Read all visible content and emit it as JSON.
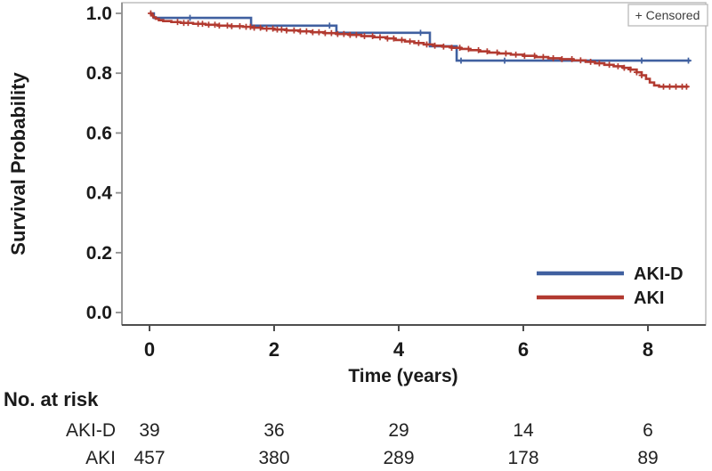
{
  "chart_data": {
    "type": "line",
    "subtype": "kaplan-meier-step",
    "title": "",
    "xlabel": "Time (years)",
    "ylabel": "Survival Probability",
    "xlim": [
      -0.45,
      8.95
    ],
    "ylim": [
      -0.04,
      1.035
    ],
    "x_ticks": [
      0,
      2,
      4,
      6,
      8
    ],
    "y_ticks": [
      "1.0",
      "0.8",
      "0.6",
      "0.4",
      "0.2",
      "0.0"
    ],
    "y_tick_values": [
      1.0,
      0.8,
      0.6,
      0.4,
      0.2,
      0.0
    ],
    "grid": false,
    "legend_position": "bottom-right-inside",
    "censored_label": "+ Censored",
    "series": [
      {
        "name": "AKI-D",
        "color": "#4060a0",
        "points": [
          [
            0,
            1.0
          ],
          [
            0.07,
            0.985
          ],
          [
            1.63,
            0.959
          ],
          [
            3.0,
            0.935
          ],
          [
            4.5,
            0.89
          ],
          [
            4.93,
            0.842
          ],
          [
            8.68,
            0.842
          ]
        ],
        "censor_times": [
          0.65,
          2.89,
          4.35,
          5.0,
          5.7,
          7.9,
          8.65
        ]
      },
      {
        "name": "AKI",
        "color": "#b23a30",
        "points": [
          [
            0,
            1.0
          ],
          [
            0.03,
            0.993
          ],
          [
            0.06,
            0.987
          ],
          [
            0.1,
            0.982
          ],
          [
            0.15,
            0.977
          ],
          [
            0.22,
            0.974
          ],
          [
            0.35,
            0.971
          ],
          [
            0.5,
            0.968
          ],
          [
            0.7,
            0.965
          ],
          [
            0.9,
            0.962
          ],
          [
            1.1,
            0.959
          ],
          [
            1.3,
            0.957
          ],
          [
            1.5,
            0.955
          ],
          [
            1.65,
            0.952
          ],
          [
            1.8,
            0.949
          ],
          [
            2.0,
            0.946
          ],
          [
            2.2,
            0.943
          ],
          [
            2.4,
            0.94
          ],
          [
            2.6,
            0.937
          ],
          [
            2.8,
            0.934
          ],
          [
            3.0,
            0.931
          ],
          [
            3.2,
            0.928
          ],
          [
            3.4,
            0.924
          ],
          [
            3.6,
            0.92
          ],
          [
            3.8,
            0.916
          ],
          [
            3.95,
            0.911
          ],
          [
            4.1,
            0.906
          ],
          [
            4.25,
            0.901
          ],
          [
            4.4,
            0.896
          ],
          [
            4.55,
            0.892
          ],
          [
            4.7,
            0.889
          ],
          [
            4.85,
            0.885
          ],
          [
            5.0,
            0.881
          ],
          [
            5.15,
            0.877
          ],
          [
            5.3,
            0.873
          ],
          [
            5.45,
            0.869
          ],
          [
            5.6,
            0.866
          ],
          [
            5.8,
            0.862
          ],
          [
            6.0,
            0.858
          ],
          [
            6.2,
            0.854
          ],
          [
            6.4,
            0.85
          ],
          [
            6.6,
            0.847
          ],
          [
            6.8,
            0.843
          ],
          [
            7.0,
            0.838
          ],
          [
            7.15,
            0.833
          ],
          [
            7.3,
            0.828
          ],
          [
            7.45,
            0.823
          ],
          [
            7.6,
            0.818
          ],
          [
            7.72,
            0.812
          ],
          [
            7.82,
            0.803
          ],
          [
            7.9,
            0.793
          ],
          [
            7.97,
            0.781
          ],
          [
            8.03,
            0.769
          ],
          [
            8.1,
            0.759
          ],
          [
            8.18,
            0.755
          ],
          [
            8.65,
            0.755
          ]
        ],
        "censor_times": [
          0.02,
          0.45,
          0.55,
          0.62,
          0.78,
          0.85,
          0.95,
          1.05,
          1.12,
          1.25,
          1.32,
          1.45,
          1.55,
          1.62,
          1.68,
          1.78,
          1.88,
          1.98,
          2.05,
          2.12,
          2.2,
          2.32,
          2.42,
          2.52,
          2.62,
          2.72,
          2.82,
          2.92,
          3.02,
          3.12,
          3.22,
          3.32,
          3.45,
          3.58,
          3.7,
          3.82,
          3.92,
          4.05,
          4.18,
          4.32,
          4.45,
          4.58,
          4.72,
          4.85,
          4.98,
          5.12,
          5.28,
          5.42,
          5.58,
          5.72,
          5.88,
          6.02,
          6.18,
          6.32,
          6.48,
          6.62,
          6.78,
          6.92,
          7.08,
          7.22,
          7.38,
          7.52,
          7.62,
          7.72,
          7.82,
          7.9,
          8.25,
          8.35,
          8.45,
          8.55,
          8.62
        ]
      }
    ],
    "risk_table": {
      "title": "No. at risk",
      "times": [
        0,
        2,
        4,
        6,
        8
      ],
      "rows": [
        {
          "label": "AKI-D",
          "counts": [
            "39",
            "36",
            "29",
            "14",
            "6"
          ]
        },
        {
          "label": "AKI",
          "counts": [
            "457",
            "380",
            "289",
            "178",
            "89"
          ]
        }
      ]
    }
  }
}
